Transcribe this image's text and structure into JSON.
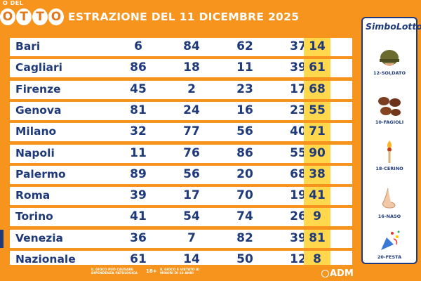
{
  "header": {
    "logo_small": "O DEL",
    "logo_balls": [
      "O",
      "T",
      "T",
      "O"
    ],
    "title": "ESTRAZIONE DEL 11 DICEMBRE 2025"
  },
  "table": {
    "rows": [
      {
        "city": "Bari",
        "numbers": [
          "6",
          "84",
          "62",
          "37",
          "14"
        ]
      },
      {
        "city": "Cagliari",
        "numbers": [
          "86",
          "18",
          "11",
          "39",
          "61"
        ]
      },
      {
        "city": "Firenze",
        "numbers": [
          "45",
          "2",
          "23",
          "17",
          "68"
        ]
      },
      {
        "city": "Genova",
        "numbers": [
          "81",
          "24",
          "16",
          "23",
          "55"
        ]
      },
      {
        "city": "Milano",
        "numbers": [
          "32",
          "77",
          "56",
          "40",
          "71"
        ]
      },
      {
        "city": "Napoli",
        "numbers": [
          "11",
          "76",
          "86",
          "55",
          "90"
        ]
      },
      {
        "city": "Palermo",
        "numbers": [
          "89",
          "56",
          "20",
          "68",
          "38"
        ]
      },
      {
        "city": "Roma",
        "numbers": [
          "39",
          "17",
          "70",
          "19",
          "41"
        ]
      },
      {
        "city": "Torino",
        "numbers": [
          "41",
          "54",
          "74",
          "26",
          "9"
        ]
      },
      {
        "city": "Venezia",
        "numbers": [
          "36",
          "7",
          "82",
          "39",
          "81"
        ]
      },
      {
        "city": "Nazionale",
        "numbers": [
          "61",
          "14",
          "50",
          "12",
          "8"
        ]
      }
    ]
  },
  "simbolotto": {
    "title": "SimboLotto",
    "symbols": [
      {
        "label": "12-SOLDATO",
        "icon": "soldier-helmet-icon"
      },
      {
        "label": "10-FAGIOLI",
        "icon": "beans-icon"
      },
      {
        "label": "18-CERINO",
        "icon": "match-icon"
      },
      {
        "label": "16-NASO",
        "icon": "nose-icon"
      },
      {
        "label": "20-FESTA",
        "icon": "party-popper-icon"
      }
    ]
  },
  "footer": {
    "note1": "IL GIOCO PUÒ CAUSARE DIPENDENZA PATOLOGICA",
    "age": "18+",
    "note2": "IL GIOCO È VIETATO AI MINORI DI 18 ANNI",
    "brand": "ADM"
  },
  "colors": {
    "background": "#f7941d",
    "text_blue": "#1f3a7a",
    "highlight_yellow": "#ffd84d"
  }
}
